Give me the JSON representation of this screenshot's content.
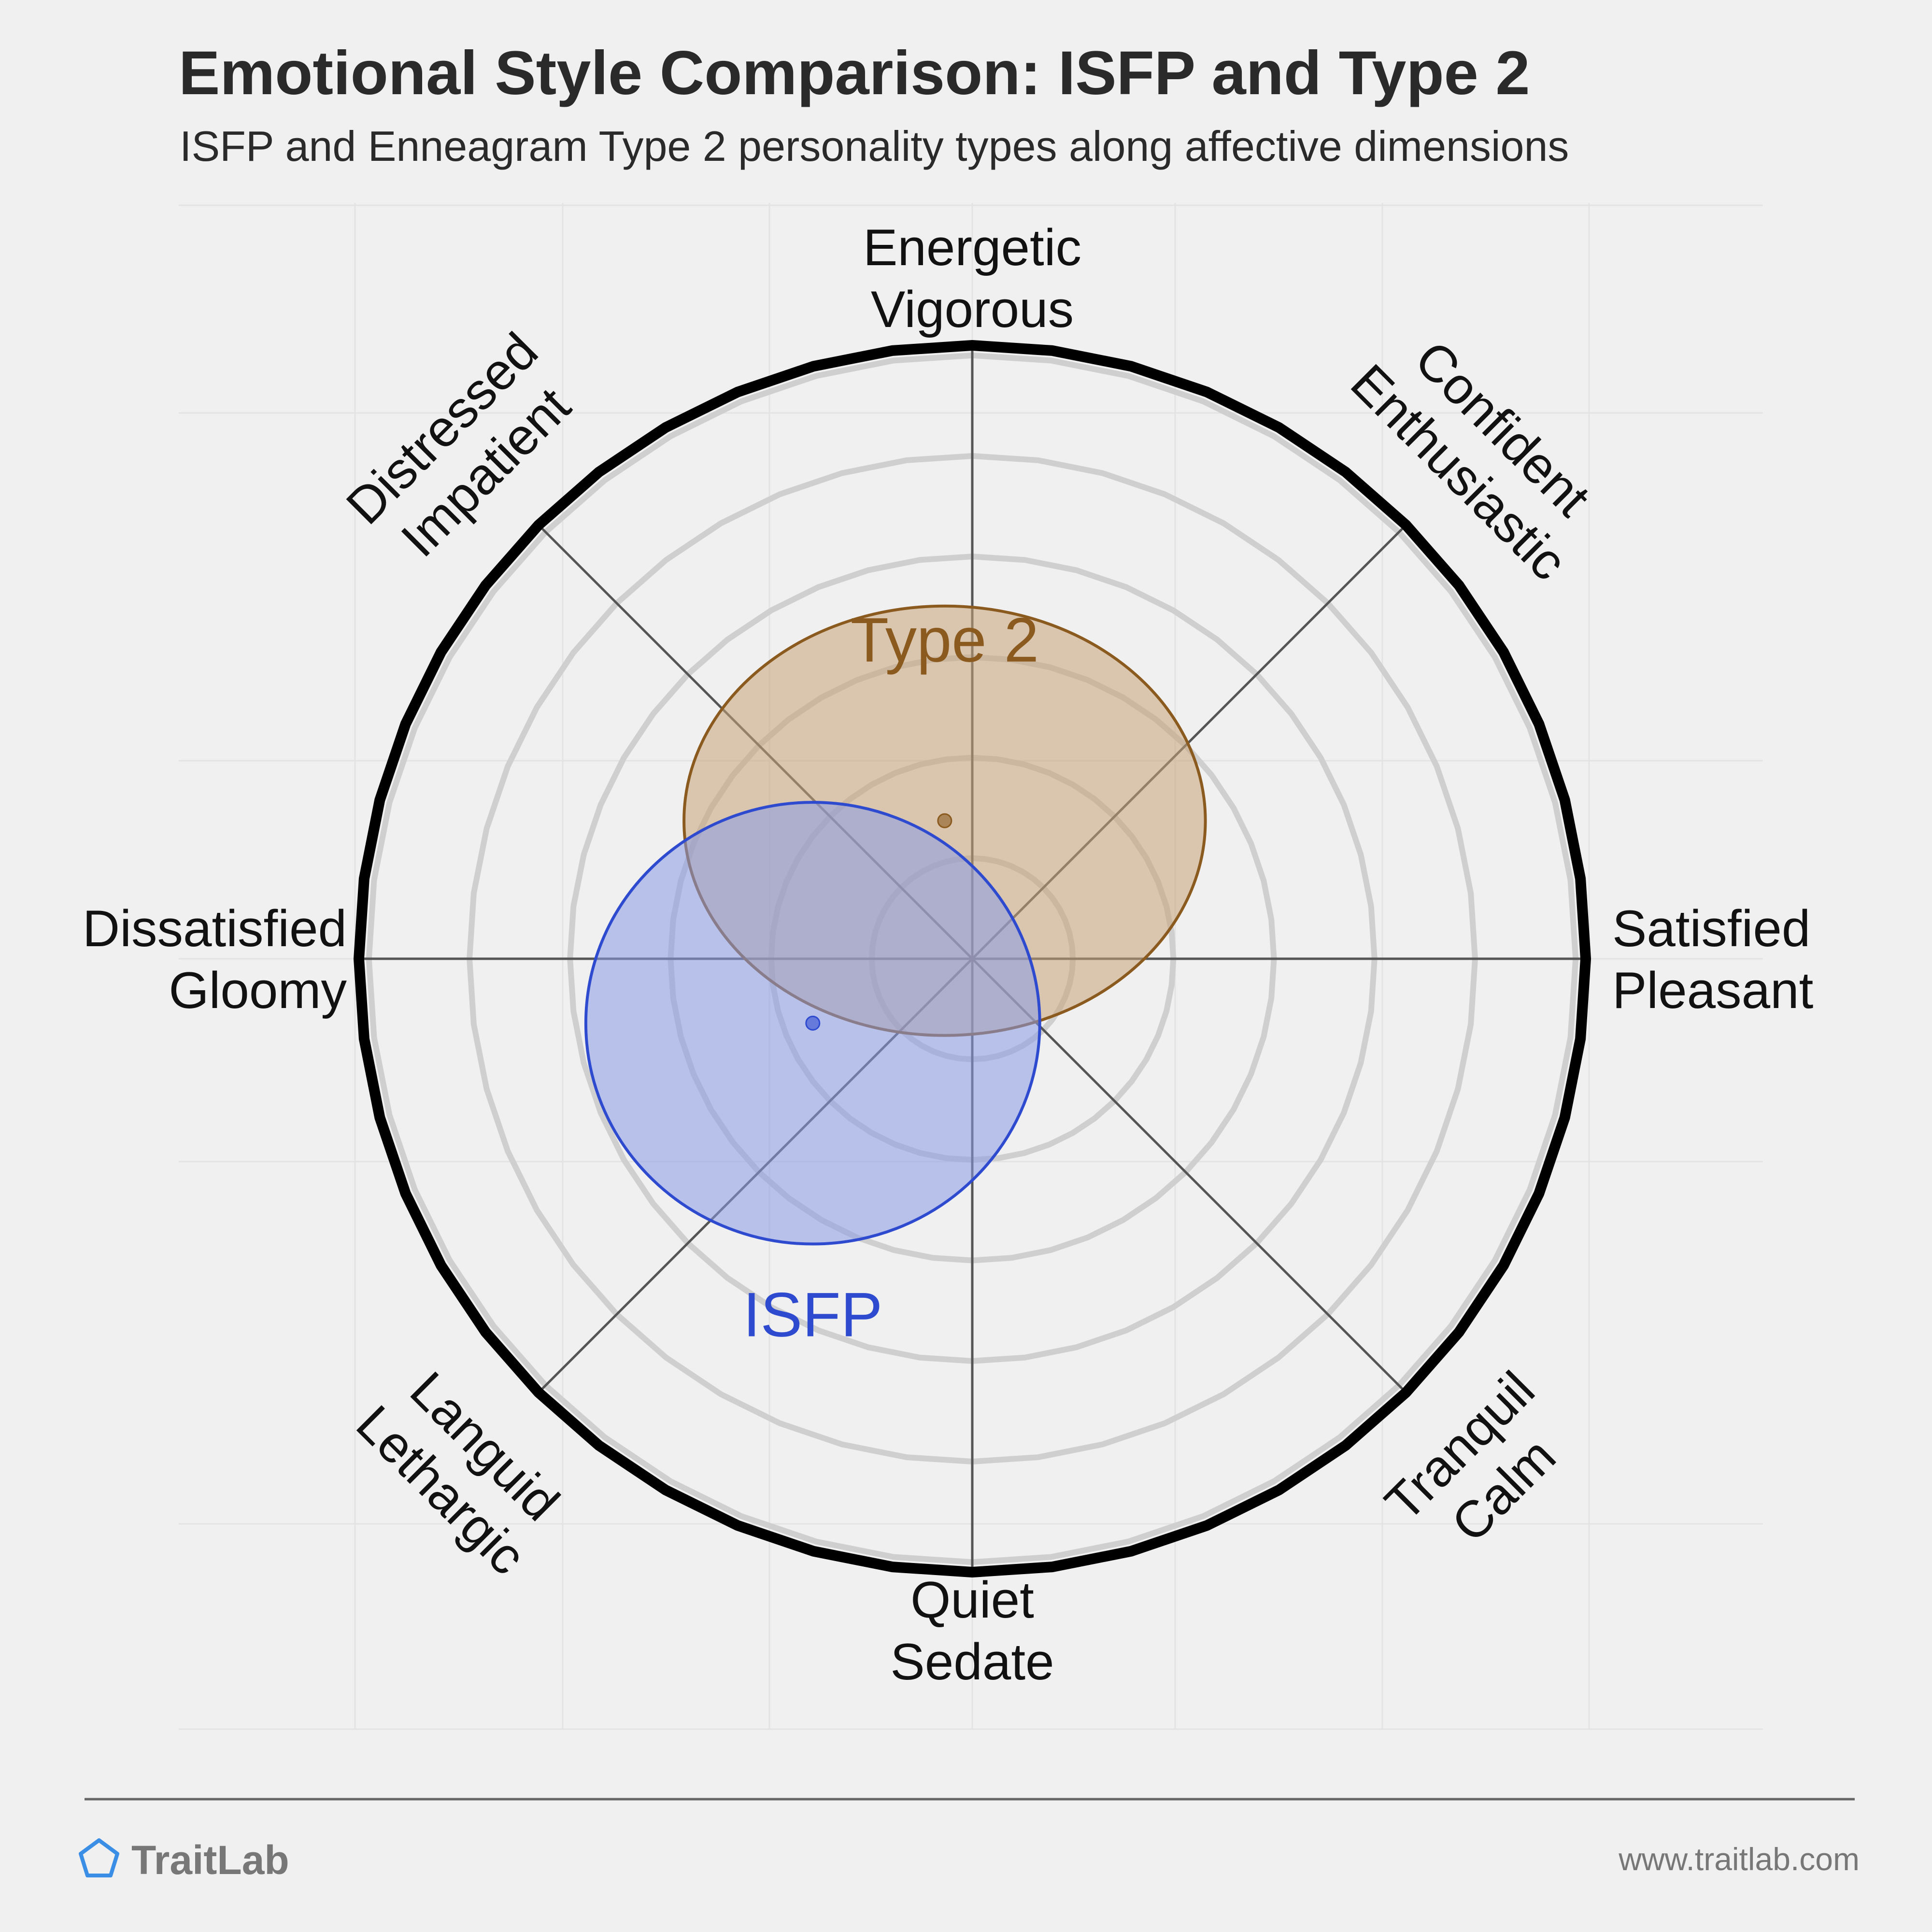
{
  "header": {
    "title": "Emotional Style Comparison: ISFP and Type 2",
    "subtitle": "ISFP and Enneagram Type 2 personality types along affective dimensions"
  },
  "footer": {
    "brand": "TraitLab",
    "url": "www.traitlab.com",
    "logo_icon": "pentagon-icon"
  },
  "chart_data": {
    "type": "scatter",
    "title": "Emotional Style Comparison: ISFP and Type 2",
    "subtitle": "ISFP and Enneagram Type 2 personality types along affective dimensions",
    "axes": [
      {
        "angle": 90,
        "lines": [
          "Energetic",
          "Vigorous"
        ]
      },
      {
        "angle": 45,
        "lines": [
          "Confident",
          "Enthusiastic"
        ]
      },
      {
        "angle": 0,
        "lines": [
          "Satisfied",
          "Pleasant"
        ]
      },
      {
        "angle": -45,
        "lines": [
          "Tranquil",
          "Calm"
        ]
      },
      {
        "angle": -90,
        "lines": [
          "Quiet",
          "Sedate"
        ]
      },
      {
        "angle": -135,
        "lines": [
          "Languid",
          "Lethargic"
        ]
      },
      {
        "angle": 180,
        "lines": [
          "Dissatisfied",
          "Gloomy"
        ]
      },
      {
        "angle": 135,
        "lines": [
          "Distressed",
          "Impatient"
        ]
      }
    ],
    "xlim": [
      -1,
      1
    ],
    "ylim": [
      -1,
      1
    ],
    "rings": 6,
    "grid": true,
    "series": [
      {
        "name": "Type 2",
        "x": -0.045,
        "y": 0.225,
        "rx": 0.425,
        "ry": 0.35,
        "color": "#8b5a1e",
        "fill": "#c8a47a"
      },
      {
        "name": "ISFP",
        "x": -0.26,
        "y": -0.105,
        "rx": 0.37,
        "ry": 0.36,
        "color": "#2e4bd0",
        "fill": "#8a9ae6"
      }
    ]
  }
}
